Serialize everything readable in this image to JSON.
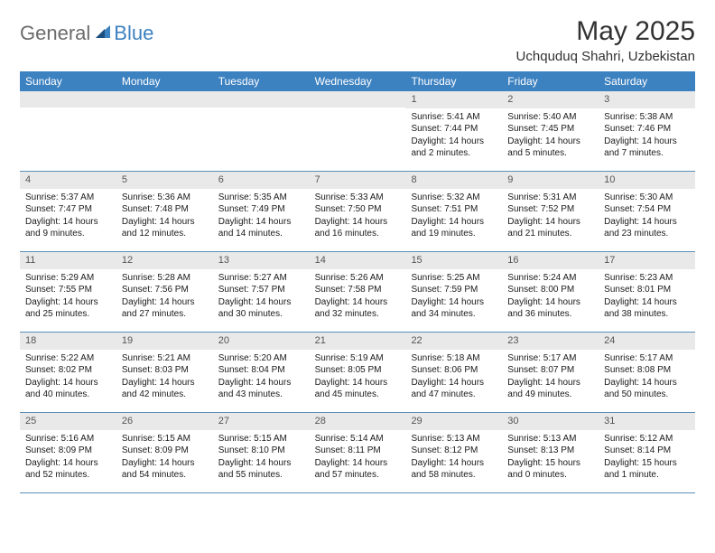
{
  "brand": {
    "general": "General",
    "blue": "Blue"
  },
  "title": "May 2025",
  "location": "Uchquduq Shahri, Uzbekistan",
  "colors": {
    "header_bg": "#3c81c0",
    "header_text": "#ffffff",
    "band_bg": "#e9e9ea",
    "border": "#5b8fb8",
    "logo_gray": "#6b6b6b",
    "logo_blue": "#3c81c0"
  },
  "day_headers": [
    "Sunday",
    "Monday",
    "Tuesday",
    "Wednesday",
    "Thursday",
    "Friday",
    "Saturday"
  ],
  "weeks": [
    [
      {
        "num": "",
        "sunrise": "",
        "sunset": "",
        "daylight": ""
      },
      {
        "num": "",
        "sunrise": "",
        "sunset": "",
        "daylight": ""
      },
      {
        "num": "",
        "sunrise": "",
        "sunset": "",
        "daylight": ""
      },
      {
        "num": "",
        "sunrise": "",
        "sunset": "",
        "daylight": ""
      },
      {
        "num": "1",
        "sunrise": "Sunrise: 5:41 AM",
        "sunset": "Sunset: 7:44 PM",
        "daylight": "Daylight: 14 hours and 2 minutes."
      },
      {
        "num": "2",
        "sunrise": "Sunrise: 5:40 AM",
        "sunset": "Sunset: 7:45 PM",
        "daylight": "Daylight: 14 hours and 5 minutes."
      },
      {
        "num": "3",
        "sunrise": "Sunrise: 5:38 AM",
        "sunset": "Sunset: 7:46 PM",
        "daylight": "Daylight: 14 hours and 7 minutes."
      }
    ],
    [
      {
        "num": "4",
        "sunrise": "Sunrise: 5:37 AM",
        "sunset": "Sunset: 7:47 PM",
        "daylight": "Daylight: 14 hours and 9 minutes."
      },
      {
        "num": "5",
        "sunrise": "Sunrise: 5:36 AM",
        "sunset": "Sunset: 7:48 PM",
        "daylight": "Daylight: 14 hours and 12 minutes."
      },
      {
        "num": "6",
        "sunrise": "Sunrise: 5:35 AM",
        "sunset": "Sunset: 7:49 PM",
        "daylight": "Daylight: 14 hours and 14 minutes."
      },
      {
        "num": "7",
        "sunrise": "Sunrise: 5:33 AM",
        "sunset": "Sunset: 7:50 PM",
        "daylight": "Daylight: 14 hours and 16 minutes."
      },
      {
        "num": "8",
        "sunrise": "Sunrise: 5:32 AM",
        "sunset": "Sunset: 7:51 PM",
        "daylight": "Daylight: 14 hours and 19 minutes."
      },
      {
        "num": "9",
        "sunrise": "Sunrise: 5:31 AM",
        "sunset": "Sunset: 7:52 PM",
        "daylight": "Daylight: 14 hours and 21 minutes."
      },
      {
        "num": "10",
        "sunrise": "Sunrise: 5:30 AM",
        "sunset": "Sunset: 7:54 PM",
        "daylight": "Daylight: 14 hours and 23 minutes."
      }
    ],
    [
      {
        "num": "11",
        "sunrise": "Sunrise: 5:29 AM",
        "sunset": "Sunset: 7:55 PM",
        "daylight": "Daylight: 14 hours and 25 minutes."
      },
      {
        "num": "12",
        "sunrise": "Sunrise: 5:28 AM",
        "sunset": "Sunset: 7:56 PM",
        "daylight": "Daylight: 14 hours and 27 minutes."
      },
      {
        "num": "13",
        "sunrise": "Sunrise: 5:27 AM",
        "sunset": "Sunset: 7:57 PM",
        "daylight": "Daylight: 14 hours and 30 minutes."
      },
      {
        "num": "14",
        "sunrise": "Sunrise: 5:26 AM",
        "sunset": "Sunset: 7:58 PM",
        "daylight": "Daylight: 14 hours and 32 minutes."
      },
      {
        "num": "15",
        "sunrise": "Sunrise: 5:25 AM",
        "sunset": "Sunset: 7:59 PM",
        "daylight": "Daylight: 14 hours and 34 minutes."
      },
      {
        "num": "16",
        "sunrise": "Sunrise: 5:24 AM",
        "sunset": "Sunset: 8:00 PM",
        "daylight": "Daylight: 14 hours and 36 minutes."
      },
      {
        "num": "17",
        "sunrise": "Sunrise: 5:23 AM",
        "sunset": "Sunset: 8:01 PM",
        "daylight": "Daylight: 14 hours and 38 minutes."
      }
    ],
    [
      {
        "num": "18",
        "sunrise": "Sunrise: 5:22 AM",
        "sunset": "Sunset: 8:02 PM",
        "daylight": "Daylight: 14 hours and 40 minutes."
      },
      {
        "num": "19",
        "sunrise": "Sunrise: 5:21 AM",
        "sunset": "Sunset: 8:03 PM",
        "daylight": "Daylight: 14 hours and 42 minutes."
      },
      {
        "num": "20",
        "sunrise": "Sunrise: 5:20 AM",
        "sunset": "Sunset: 8:04 PM",
        "daylight": "Daylight: 14 hours and 43 minutes."
      },
      {
        "num": "21",
        "sunrise": "Sunrise: 5:19 AM",
        "sunset": "Sunset: 8:05 PM",
        "daylight": "Daylight: 14 hours and 45 minutes."
      },
      {
        "num": "22",
        "sunrise": "Sunrise: 5:18 AM",
        "sunset": "Sunset: 8:06 PM",
        "daylight": "Daylight: 14 hours and 47 minutes."
      },
      {
        "num": "23",
        "sunrise": "Sunrise: 5:17 AM",
        "sunset": "Sunset: 8:07 PM",
        "daylight": "Daylight: 14 hours and 49 minutes."
      },
      {
        "num": "24",
        "sunrise": "Sunrise: 5:17 AM",
        "sunset": "Sunset: 8:08 PM",
        "daylight": "Daylight: 14 hours and 50 minutes."
      }
    ],
    [
      {
        "num": "25",
        "sunrise": "Sunrise: 5:16 AM",
        "sunset": "Sunset: 8:09 PM",
        "daylight": "Daylight: 14 hours and 52 minutes."
      },
      {
        "num": "26",
        "sunrise": "Sunrise: 5:15 AM",
        "sunset": "Sunset: 8:09 PM",
        "daylight": "Daylight: 14 hours and 54 minutes."
      },
      {
        "num": "27",
        "sunrise": "Sunrise: 5:15 AM",
        "sunset": "Sunset: 8:10 PM",
        "daylight": "Daylight: 14 hours and 55 minutes."
      },
      {
        "num": "28",
        "sunrise": "Sunrise: 5:14 AM",
        "sunset": "Sunset: 8:11 PM",
        "daylight": "Daylight: 14 hours and 57 minutes."
      },
      {
        "num": "29",
        "sunrise": "Sunrise: 5:13 AM",
        "sunset": "Sunset: 8:12 PM",
        "daylight": "Daylight: 14 hours and 58 minutes."
      },
      {
        "num": "30",
        "sunrise": "Sunrise: 5:13 AM",
        "sunset": "Sunset: 8:13 PM",
        "daylight": "Daylight: 15 hours and 0 minutes."
      },
      {
        "num": "31",
        "sunrise": "Sunrise: 5:12 AM",
        "sunset": "Sunset: 8:14 PM",
        "daylight": "Daylight: 15 hours and 1 minute."
      }
    ]
  ]
}
